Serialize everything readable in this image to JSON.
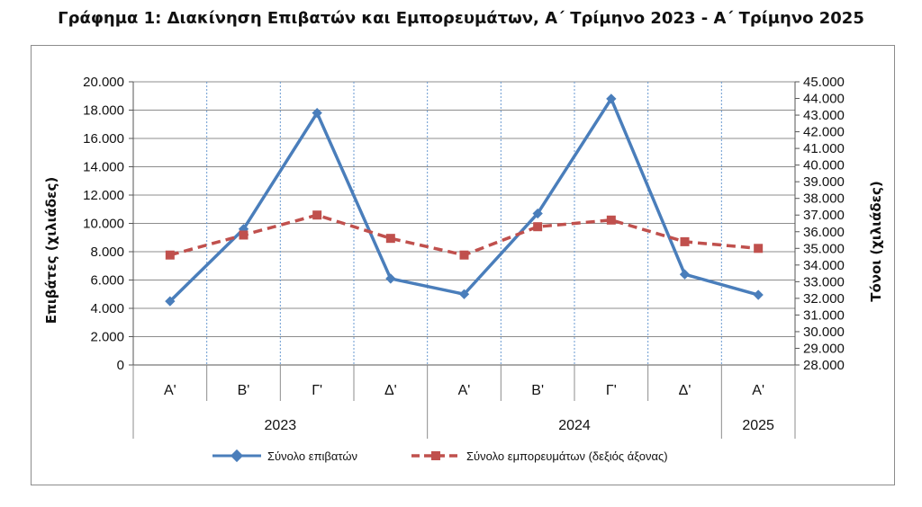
{
  "chart_data": {
    "type": "line",
    "title": "Γράφημα 1: Διακίνηση Επιβατών και Εμπορευμάτων, Α΄ Τρίμηνο 2023 - Α΄ Τρίμηνο 2025",
    "categories": [
      "Α'",
      "Β'",
      "Γ'",
      "Δ'",
      "Α'",
      "Β'",
      "Γ'",
      "Δ'",
      "Α'"
    ],
    "years": [
      {
        "label": "2023",
        "span": 4
      },
      {
        "label": "2024",
        "span": 4
      },
      {
        "label": "2025",
        "span": 1
      }
    ],
    "ylabel": "Επιβάτες  (χιλιάδες)",
    "ylabel_right": "Τόνοι  (χιλιάδες)",
    "ylim": [
      0,
      20000
    ],
    "ylim_right": [
      28000,
      45000
    ],
    "yticks": [
      "0",
      "2.000",
      "4.000",
      "6.000",
      "8.000",
      "10.000",
      "12.000",
      "14.000",
      "16.000",
      "18.000",
      "20.000"
    ],
    "yticks_right": [
      "28.000",
      "29.000",
      "30.000",
      "31.000",
      "32.000",
      "33.000",
      "34.000",
      "35.000",
      "36.000",
      "37.000",
      "38.000",
      "39.000",
      "40.000",
      "41.000",
      "42.000",
      "43.000",
      "44.000",
      "45.000"
    ],
    "series": [
      {
        "name": "Σύνολο επιβατών",
        "axis": "left",
        "color": "#4a7ebb",
        "style": "solid",
        "marker": "diamond",
        "values": [
          4500,
          9600,
          17800,
          6100,
          5000,
          10700,
          18800,
          6400,
          4950
        ]
      },
      {
        "name": "Σύνολο εμπορευμάτων (δεξιός άξονας)",
        "axis": "right",
        "color": "#c0504d",
        "style": "dashed",
        "marker": "square",
        "values": [
          34600,
          35800,
          37000,
          35600,
          34600,
          36300,
          36700,
          35400,
          35000
        ]
      }
    ],
    "grid": {
      "horizontal": true,
      "vertical_dotted": true
    },
    "legend_position": "bottom"
  }
}
